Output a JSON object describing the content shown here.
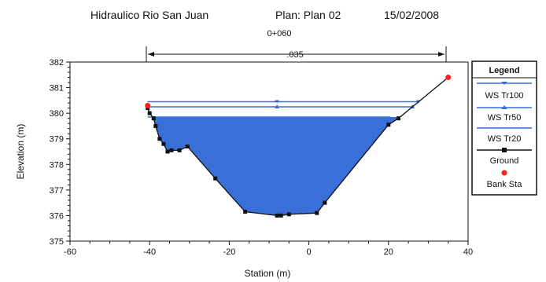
{
  "chart_data": {
    "type": "line",
    "title_parts": [
      "Hidraulico Rio San Juan",
      "Plan: Plan 02",
      "15/02/2008"
    ],
    "section_label": "0+060",
    "manning_label": ".035",
    "xlabel": "Station (m)",
    "ylabel": "Elevation (m)",
    "xlim": [
      -60,
      40
    ],
    "ylim": [
      375,
      382
    ],
    "x_ticks": [
      "-60",
      "-40",
      "-20",
      "0",
      "20",
      "40"
    ],
    "y_ticks": [
      "375",
      "376",
      "377",
      "378",
      "379",
      "380",
      "381",
      "382"
    ],
    "legend_title": "Legend",
    "series": [
      {
        "name": "WS Tr100",
        "color": "#3a6fd8",
        "level": 380.45,
        "x_range": [
          -40.5,
          27.5
        ]
      },
      {
        "name": "WS Tr50",
        "color": "#3a6fd8",
        "level": 380.25,
        "x_range": [
          -40.5,
          26.0
        ]
      },
      {
        "name": "WS Tr20",
        "color": "#3a6fd8",
        "level": 379.85,
        "x_range": [
          -40.5,
          20.5
        ]
      },
      {
        "name": "Ground",
        "color": "#111111",
        "points": [
          [
            -40.5,
            380.2
          ],
          [
            -40,
            380.0
          ],
          [
            -39,
            379.8
          ],
          [
            -38.5,
            379.5
          ],
          [
            -37.5,
            379.0
          ],
          [
            -36.5,
            378.8
          ],
          [
            -35.5,
            378.5
          ],
          [
            -34.5,
            378.55
          ],
          [
            -32.5,
            378.55
          ],
          [
            -30.5,
            378.7
          ],
          [
            -23.5,
            377.45
          ],
          [
            -16,
            376.15
          ],
          [
            -8,
            376.0
          ],
          [
            -7,
            376.0
          ],
          [
            -5,
            376.05
          ],
          [
            2,
            376.1
          ],
          [
            4,
            376.5
          ],
          [
            20,
            379.55
          ],
          [
            22.5,
            379.8
          ],
          [
            35,
            381.4
          ]
        ]
      },
      {
        "name": "Bank Sta",
        "color": "#ff2020",
        "points": [
          [
            -40.5,
            380.3
          ],
          [
            35,
            381.4
          ]
        ]
      }
    ],
    "water_fill_color": "#3a6fd8",
    "grid": false,
    "legend_position": "right"
  }
}
